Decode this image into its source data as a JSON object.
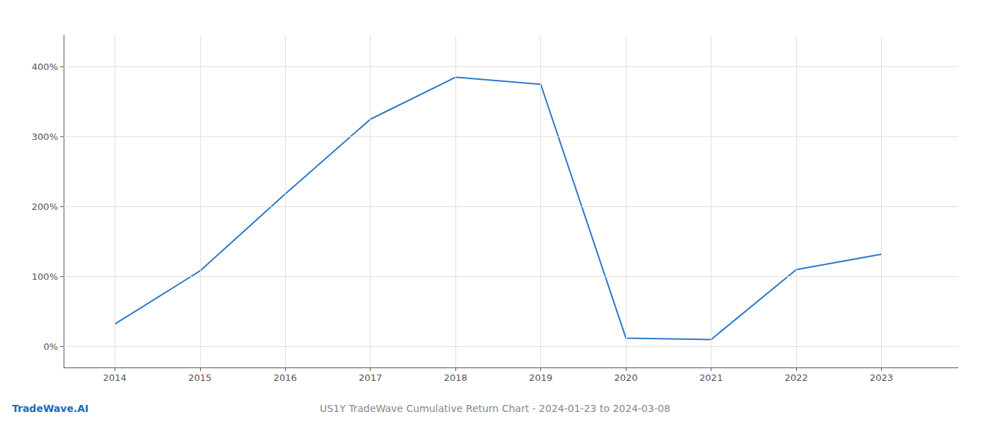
{
  "chart_data": {
    "type": "line",
    "title": "US1Y TradeWave Cumulative Return Chart - 2024-01-23 to 2024-03-08",
    "annotations": [
      {
        "text": "TradeWave.AI",
        "color": "#1a6bbf"
      }
    ],
    "x": [
      2014,
      2015,
      2016,
      2017,
      2018,
      2019,
      2020,
      2021,
      2022,
      2023
    ],
    "values": [
      32,
      108,
      218,
      325,
      385,
      375,
      12,
      10,
      110,
      132
    ],
    "color": "#2878c8",
    "xlim": [
      2013.4,
      2023.9
    ],
    "xticks": [
      2014,
      2015,
      2016,
      2017,
      2018,
      2019,
      2020,
      2021,
      2022,
      2023
    ],
    "ylim": [
      -30,
      445
    ],
    "yticks": [
      {
        "value": 0,
        "label": "0%"
      },
      {
        "value": 100,
        "label": "100%"
      },
      {
        "value": 200,
        "label": "200%"
      },
      {
        "value": 300,
        "label": "300%"
      },
      {
        "value": 400,
        "label": "400%"
      }
    ],
    "grid": true
  }
}
